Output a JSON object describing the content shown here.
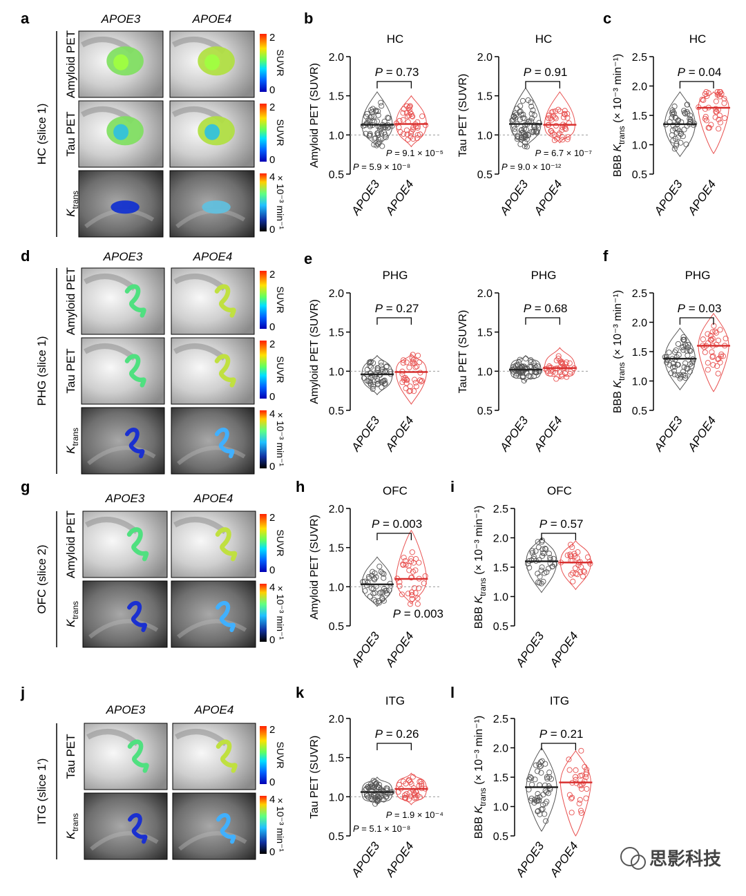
{
  "figure": {
    "panel_letters": [
      "a",
      "b",
      "c",
      "d",
      "e",
      "f",
      "g",
      "h",
      "i",
      "j",
      "k",
      "l"
    ],
    "genotypes": [
      "APOE3",
      "APOE4"
    ],
    "region_labels": {
      "a": "HC (slice 1)",
      "d": "PHG (slice 1)",
      "g": "OFC (slice 2)",
      "j": "ITG (slice 1′)"
    },
    "modality_labels": {
      "amyloid": "Amyloid PET",
      "tau": "Tau PET",
      "ktrans_base": "K",
      "ktrans_sub": "trans"
    },
    "colorbars": {
      "suvr": {
        "label": "SUVR",
        "max": "2",
        "min": "0"
      },
      "ktrans": {
        "label": "× 10⁻³ min⁻¹",
        "max": "4",
        "min": "0"
      }
    },
    "colors": {
      "apoe3": "#555555",
      "apoe4": "#e8504f",
      "refline": "#999999"
    },
    "watermark": "思影科技"
  },
  "chart_data": [
    {
      "id": "b1",
      "panel": "b",
      "type": "scatter",
      "title": "HC",
      "ylabel": "Amyloid PET (SUVR)",
      "ylim": [
        0.5,
        2.0
      ],
      "yticks": [
        "0.5",
        "1.0",
        "1.5",
        "2.0"
      ],
      "refline": 1.0,
      "categories": [
        "APOE3",
        "APOE4"
      ],
      "series": [
        {
          "name": "APOE3",
          "median": 1.13,
          "min": 0.85,
          "max": 1.55,
          "n": 60
        },
        {
          "name": "APOE4",
          "median": 1.14,
          "min": 0.85,
          "max": 1.5,
          "n": 40
        }
      ],
      "annotations": [
        "P = 0.73",
        "P = 9.1 × 10⁻⁵",
        "P = 5.9 × 10⁻⁸"
      ]
    },
    {
      "id": "b2",
      "panel": "b",
      "type": "scatter",
      "title": "HC",
      "ylabel": "Tau PET (SUVR)",
      "ylim": [
        0.5,
        2.0
      ],
      "yticks": [
        "0.5",
        "1.0",
        "1.5",
        "2.0"
      ],
      "refline": 1.0,
      "categories": [
        "APOE3",
        "APOE4"
      ],
      "series": [
        {
          "name": "APOE3",
          "median": 1.14,
          "min": 0.85,
          "max": 1.6,
          "n": 70
        },
        {
          "name": "APOE4",
          "median": 1.13,
          "min": 0.9,
          "max": 1.55,
          "n": 40
        }
      ],
      "annotations": [
        "P = 0.91",
        "P = 6.7 × 10⁻⁷",
        "P = 9.0 × 10⁻¹²"
      ]
    },
    {
      "id": "c",
      "panel": "c",
      "type": "scatter",
      "title": "HC",
      "ylabel": "BBB K",
      "ylim": [
        0.5,
        2.5
      ],
      "yticks": [
        "0.5",
        "1.0",
        "1.5",
        "2.0",
        "2.5"
      ],
      "refline": null,
      "categories": [
        "APOE3",
        "APOE4"
      ],
      "series": [
        {
          "name": "APOE3",
          "median": 1.35,
          "min": 0.8,
          "max": 1.9,
          "n": 50
        },
        {
          "name": "APOE4",
          "median": 1.63,
          "min": 0.85,
          "max": 1.9,
          "n": 35
        }
      ],
      "annotations": [
        "P = 0.04"
      ]
    },
    {
      "id": "e1",
      "panel": "e",
      "type": "scatter",
      "title": "PHG",
      "ylabel": "Amyloid PET (SUVR)",
      "ylim": [
        0.5,
        2.0
      ],
      "yticks": [
        "0.5",
        "1.0",
        "1.5",
        "2.0"
      ],
      "refline": 1.0,
      "categories": [
        "APOE3",
        "APOE4"
      ],
      "series": [
        {
          "name": "APOE3",
          "median": 0.96,
          "min": 0.7,
          "max": 1.2,
          "n": 50
        },
        {
          "name": "APOE4",
          "median": 0.99,
          "min": 0.58,
          "max": 1.22,
          "n": 35
        }
      ],
      "annotations": [
        "P = 0.27"
      ]
    },
    {
      "id": "e2",
      "panel": "e",
      "type": "scatter",
      "title": "PHG",
      "ylabel": "Tau PET (SUVR)",
      "ylim": [
        0.5,
        2.0
      ],
      "yticks": [
        "0.5",
        "1.0",
        "1.5",
        "2.0"
      ],
      "refline": 1.0,
      "categories": [
        "APOE3",
        "APOE4"
      ],
      "series": [
        {
          "name": "APOE3",
          "median": 1.02,
          "min": 0.87,
          "max": 1.2,
          "n": 60
        },
        {
          "name": "APOE4",
          "median": 1.04,
          "min": 0.9,
          "max": 1.3,
          "n": 35
        }
      ],
      "annotations": [
        "P = 0.68"
      ]
    },
    {
      "id": "f",
      "panel": "f",
      "type": "scatter",
      "title": "PHG",
      "ylabel": "BBB K",
      "ylim": [
        0.5,
        2.5
      ],
      "yticks": [
        "0.5",
        "1.0",
        "1.5",
        "2.0",
        "2.5"
      ],
      "refline": null,
      "categories": [
        "APOE3",
        "APOE4"
      ],
      "series": [
        {
          "name": "APOE3",
          "median": 1.38,
          "min": 0.85,
          "max": 1.9,
          "n": 55
        },
        {
          "name": "APOE4",
          "median": 1.6,
          "min": 0.82,
          "max": 2.15,
          "n": 35
        }
      ],
      "annotations": [
        "P = 0.03"
      ]
    },
    {
      "id": "h",
      "panel": "h",
      "type": "scatter",
      "title": "OFC",
      "ylabel": "Amyloid PET (SUVR)",
      "ylim": [
        0.5,
        2.0
      ],
      "yticks": [
        "0.5",
        "1.0",
        "1.5",
        "2.0"
      ],
      "refline": 1.0,
      "categories": [
        "APOE3",
        "APOE4"
      ],
      "series": [
        {
          "name": "APOE3",
          "median": 1.03,
          "min": 0.75,
          "max": 1.38,
          "n": 40
        },
        {
          "name": "APOE4",
          "median": 1.1,
          "min": 0.78,
          "max": 1.72,
          "n": 35
        }
      ],
      "annotations": [
        "P = 0.003",
        "P = 0.003"
      ]
    },
    {
      "id": "i",
      "panel": "i",
      "type": "scatter",
      "title": "OFC",
      "ylabel": "BBB K",
      "ylim": [
        0.5,
        2.5
      ],
      "yticks": [
        "0.5",
        "1.0",
        "1.5",
        "2.0",
        "2.5"
      ],
      "refline": null,
      "categories": [
        "APOE3",
        "APOE4"
      ],
      "series": [
        {
          "name": "APOE3",
          "median": 1.6,
          "min": 1.07,
          "max": 2.0,
          "n": 40
        },
        {
          "name": "APOE4",
          "median": 1.58,
          "min": 1.12,
          "max": 1.95,
          "n": 30
        }
      ],
      "annotations": [
        "P = 0.57"
      ]
    },
    {
      "id": "k",
      "panel": "k",
      "type": "scatter",
      "title": "ITG",
      "ylabel": "Tau PET (SUVR)",
      "ylim": [
        0.5,
        2.0
      ],
      "yticks": [
        "0.5",
        "1.0",
        "1.5",
        "2.0"
      ],
      "refline": 1.0,
      "categories": [
        "APOE3",
        "APOE4"
      ],
      "series": [
        {
          "name": "APOE3",
          "median": 1.06,
          "min": 0.9,
          "max": 1.25,
          "n": 60
        },
        {
          "name": "APOE4",
          "median": 1.1,
          "min": 0.9,
          "max": 1.3,
          "n": 35
        }
      ],
      "annotations": [
        "P = 0.26",
        "P = 1.9 × 10⁻⁴",
        "P = 5.1 × 10⁻⁸"
      ]
    },
    {
      "id": "l",
      "panel": "l",
      "type": "scatter",
      "title": "ITG",
      "ylabel": "BBB K",
      "ylim": [
        0.5,
        2.5
      ],
      "yticks": [
        "0.5",
        "1.0",
        "1.5",
        "2.0",
        "2.5"
      ],
      "refline": null,
      "categories": [
        "APOE3",
        "APOE4"
      ],
      "series": [
        {
          "name": "APOE3",
          "median": 1.33,
          "min": 0.58,
          "max": 2.0,
          "n": 50
        },
        {
          "name": "APOE4",
          "median": 1.41,
          "min": 0.5,
          "max": 1.95,
          "n": 30
        }
      ],
      "annotations": [
        "P = 0.21"
      ]
    }
  ]
}
